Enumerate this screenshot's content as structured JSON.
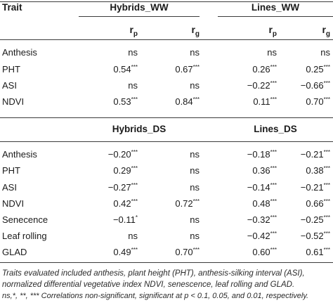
{
  "header": {
    "trait": "Trait",
    "group1": "Hybrids_WW",
    "group2": "Lines_WW",
    "r_base": "r",
    "rp_sub": "p",
    "rg_sub": "g"
  },
  "section1": {
    "rows": [
      {
        "trait": "Anthesis",
        "v": [
          {
            "n": "ns",
            "s": ""
          },
          {
            "n": "ns",
            "s": ""
          },
          {
            "n": "ns",
            "s": ""
          },
          {
            "n": "ns",
            "s": ""
          }
        ]
      },
      {
        "trait": "PHT",
        "v": [
          {
            "n": "0.54",
            "s": "***"
          },
          {
            "n": "0.67",
            "s": "***"
          },
          {
            "n": "0.26",
            "s": "***"
          },
          {
            "n": "0.25",
            "s": "***"
          }
        ]
      },
      {
        "trait": "ASI",
        "v": [
          {
            "n": "ns",
            "s": ""
          },
          {
            "n": "ns",
            "s": ""
          },
          {
            "n": "−0.22",
            "s": "***"
          },
          {
            "n": "−0.66",
            "s": "***"
          }
        ]
      },
      {
        "trait": "NDVI",
        "v": [
          {
            "n": "0.53",
            "s": "***"
          },
          {
            "n": "0.84",
            "s": "***"
          },
          {
            "n": "0.11",
            "s": "***"
          },
          {
            "n": "0.70",
            "s": "***"
          }
        ]
      }
    ]
  },
  "section2": {
    "group1": "Hybrids_DS",
    "group2": "Lines_DS",
    "rows": [
      {
        "trait": "Anthesis",
        "v": [
          {
            "n": "−0.20",
            "s": "***"
          },
          {
            "n": "ns",
            "s": ""
          },
          {
            "n": "−0.18",
            "s": "***"
          },
          {
            "n": "−0.21",
            "s": "***"
          }
        ]
      },
      {
        "trait": "PHT",
        "v": [
          {
            "n": "0.29",
            "s": "***"
          },
          {
            "n": "ns",
            "s": ""
          },
          {
            "n": "0.36",
            "s": "***"
          },
          {
            "n": "0.38",
            "s": "***"
          }
        ]
      },
      {
        "trait": "ASI",
        "v": [
          {
            "n": "−0.27",
            "s": "***"
          },
          {
            "n": "ns",
            "s": ""
          },
          {
            "n": "−0.14",
            "s": "***"
          },
          {
            "n": "−0.21",
            "s": "***"
          }
        ]
      },
      {
        "trait": "NDVI",
        "v": [
          {
            "n": "0.42",
            "s": "***"
          },
          {
            "n": "0.72",
            "s": "***"
          },
          {
            "n": "0.48",
            "s": "***"
          },
          {
            "n": "0.66",
            "s": "***"
          }
        ]
      },
      {
        "trait": "Senecence",
        "v": [
          {
            "n": "−0.11",
            "s": "*"
          },
          {
            "n": "ns",
            "s": ""
          },
          {
            "n": "−0.32",
            "s": "***"
          },
          {
            "n": "−0.25",
            "s": "***"
          }
        ]
      },
      {
        "trait": "Leaf rolling",
        "v": [
          {
            "n": "ns",
            "s": ""
          },
          {
            "n": "ns",
            "s": ""
          },
          {
            "n": "−0.42",
            "s": "***"
          },
          {
            "n": "−0.52",
            "s": "***"
          }
        ]
      },
      {
        "trait": "GLAD",
        "v": [
          {
            "n": "0.49",
            "s": "***"
          },
          {
            "n": "0.70",
            "s": "***"
          },
          {
            "n": "0.60",
            "s": "***"
          },
          {
            "n": "0.61",
            "s": "***"
          }
        ]
      }
    ]
  },
  "footnote": {
    "line1": "Traits evaluated included anthesis, plant height (PHT), anthesis-silking interval (ASI),",
    "line2": "normalized differential vegetative index NDVI, senescence, leaf rolling and GLAD.",
    "line3": "ns,*, **, *** Correlations non-significant, significant at p < 0.1, 0.05, and 0.01, respectively."
  }
}
